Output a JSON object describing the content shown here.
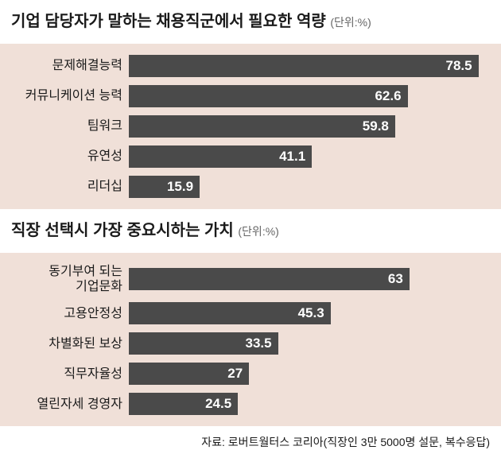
{
  "chart1": {
    "title": "기업 담당자가 말하는 채용직군에서 필요한 역량",
    "unit": "(단위:%)",
    "background_color": "#f0e0d8",
    "bar_color": "#4a4a4a",
    "value_color": "#ffffff",
    "max_value": 80,
    "bars": [
      {
        "label": "문제해결능력",
        "value": 78.5
      },
      {
        "label": "커뮤니케이션 능력",
        "value": 62.6
      },
      {
        "label": "팀워크",
        "value": 59.8
      },
      {
        "label": "유연성",
        "value": 41.1
      },
      {
        "label": "리더십",
        "value": 15.9
      }
    ]
  },
  "chart2": {
    "title": "직장 선택시 가장 중요시하는 가치",
    "unit": "(단위:%)",
    "background_color": "#f0e0d8",
    "bar_color": "#4a4a4a",
    "value_color": "#ffffff",
    "max_value": 80,
    "bars": [
      {
        "label": "동기부여 되는\n기업문화",
        "value": 63
      },
      {
        "label": "고용안정성",
        "value": 45.3
      },
      {
        "label": "차별화된 보상",
        "value": 33.5
      },
      {
        "label": "직무자율성",
        "value": 27
      },
      {
        "label": "열린자세 경영자",
        "value": 24.5
      }
    ]
  },
  "source": "자료: 로버트월터스 코리아(직장인 3만 5000명 설문, 복수응답)"
}
